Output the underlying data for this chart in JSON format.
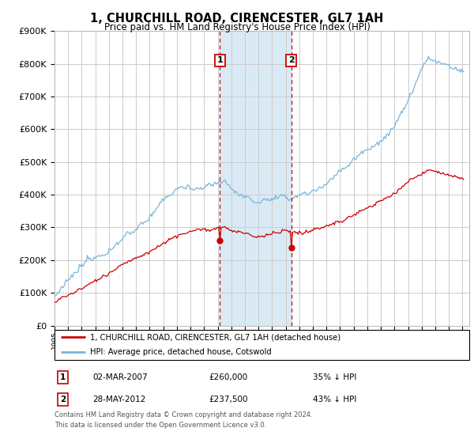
{
  "title": "1, CHURCHILL ROAD, CIRENCESTER, GL7 1AH",
  "subtitle": "Price paid vs. HM Land Registry's House Price Index (HPI)",
  "legend_line1": "1, CHURCHILL ROAD, CIRENCESTER, GL7 1AH (detached house)",
  "legend_line2": "HPI: Average price, detached house, Cotswold",
  "table_row1_date": "02-MAR-2007",
  "table_row1_price": "£260,000",
  "table_row1_hpi": "35% ↓ HPI",
  "table_row2_date": "28-MAY-2012",
  "table_row2_price": "£237,500",
  "table_row2_hpi": "43% ↓ HPI",
  "footnote1": "Contains HM Land Registry data © Crown copyright and database right 2024.",
  "footnote2": "This data is licensed under the Open Government Licence v3.0.",
  "sale1_year": 2007.17,
  "sale1_price": 260000,
  "sale2_year": 2012.41,
  "sale2_price": 237500,
  "hpi_color": "#7ab5d8",
  "price_color": "#cc0000",
  "background_color": "#ffffff",
  "grid_color": "#cccccc",
  "dashed_line_color": "#cc0000",
  "highlight_bg_color": "#daeaf5",
  "ylim_min": 0,
  "ylim_max": 900000,
  "xlim_min": 1995.0,
  "xlim_max": 2025.5
}
